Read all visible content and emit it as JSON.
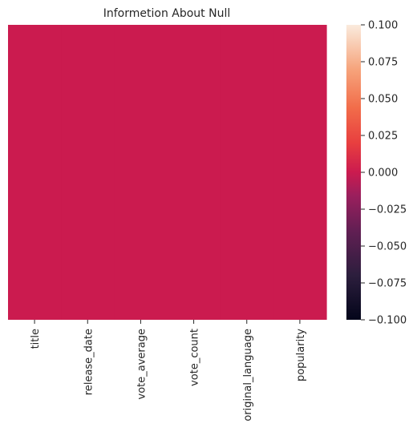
{
  "chart_data": {
    "type": "heatmap",
    "title": "Informetion About Null",
    "columns": [
      "title",
      "release_date",
      "vote_average",
      "vote_count",
      "original_language",
      "popularity"
    ],
    "values": [
      0,
      0,
      0,
      0,
      0,
      0
    ],
    "colorbar": {
      "vmin": -0.1,
      "vmax": 0.1,
      "ticks": [
        "0.100",
        "0.075",
        "0.050",
        "0.025",
        "0.000",
        "−0.025",
        "−0.050",
        "−0.075",
        "−0.100"
      ],
      "colormap": "rocket"
    },
    "cell_color": "#CB1B4F",
    "grid": false,
    "ylabels_visible": false
  }
}
